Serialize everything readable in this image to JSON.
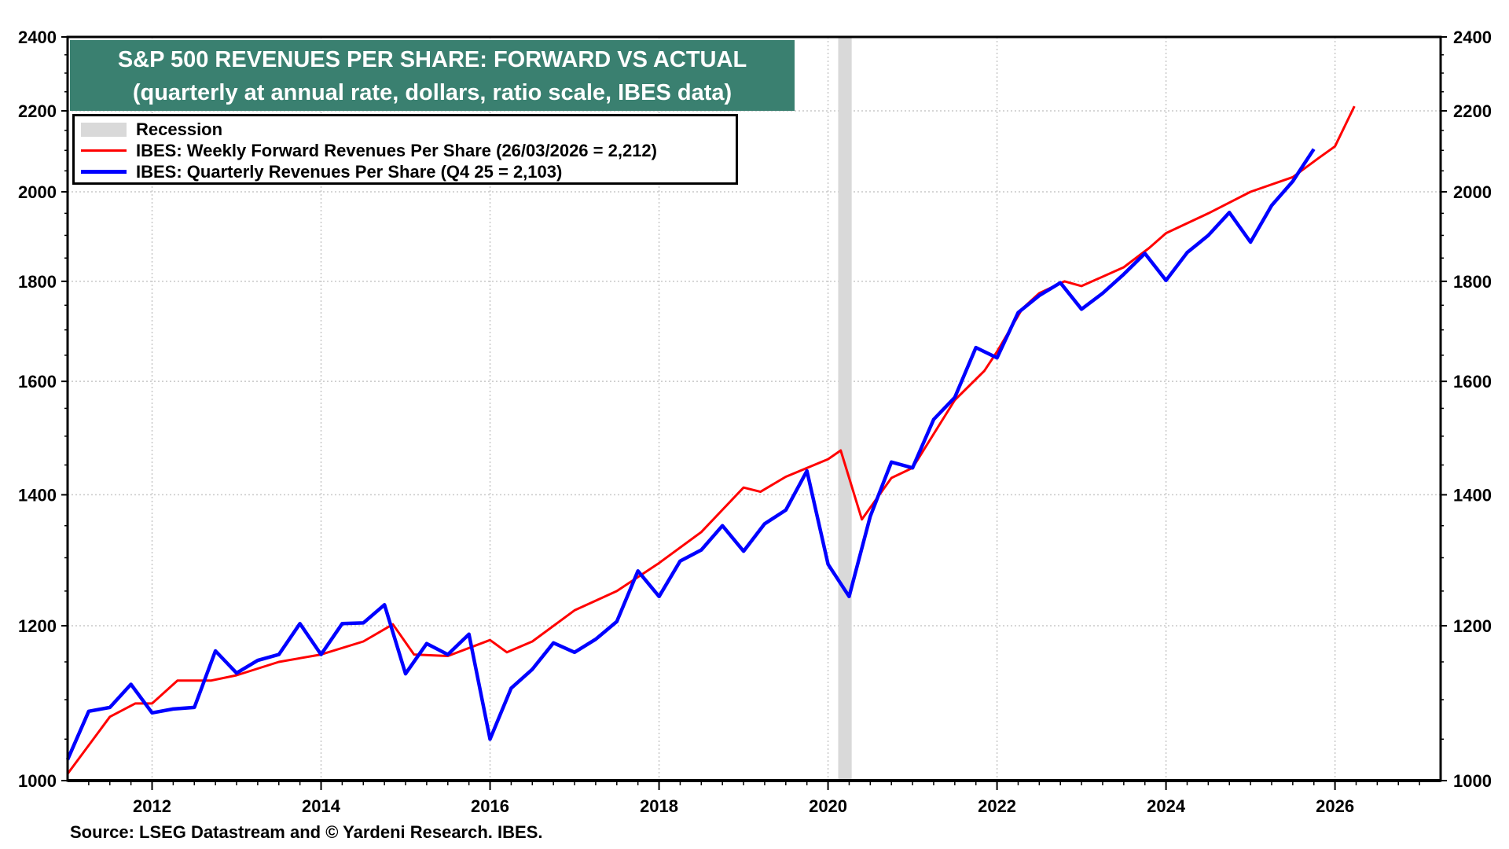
{
  "chart_data": {
    "type": "line",
    "title": "S&P 500 REVENUES PER SHARE: FORWARD VS ACTUAL",
    "subtitle": "(quarterly at annual rate, dollars, ratio scale, IBES data)",
    "y_scale": "log",
    "ylim": [
      1000,
      2400
    ],
    "xlim": [
      2011.0,
      2027.25
    ],
    "y_ticks": [
      1000,
      1200,
      1400,
      1600,
      1800,
      2000,
      2200,
      2400
    ],
    "x_ticks": [
      2012,
      2014,
      2016,
      2018,
      2020,
      2022,
      2024,
      2026
    ],
    "grid": true,
    "legend_position": "top-left",
    "recession": {
      "label": "Recession",
      "start": 2020.12,
      "end": 2020.28,
      "color": "#d9d9d9"
    },
    "series": [
      {
        "name": "IBES: Weekly Forward Revenues Per Share (26/03/2026 = 2,212)",
        "color": "#ff0000",
        "x": [
          2011.0,
          2011.5,
          2011.8,
          2012.0,
          2012.3,
          2012.7,
          2013.0,
          2013.5,
          2014.0,
          2014.5,
          2014.85,
          2015.1,
          2015.5,
          2016.0,
          2016.2,
          2016.5,
          2017.0,
          2017.5,
          2018.0,
          2018.5,
          2019.0,
          2019.2,
          2019.5,
          2020.0,
          2020.15,
          2020.4,
          2020.75,
          2021.0,
          2021.5,
          2021.85,
          2022.0,
          2022.3,
          2022.5,
          2022.8,
          2023.0,
          2023.5,
          2023.8,
          2024.0,
          2024.5,
          2025.0,
          2025.5,
          2025.8,
          2026.0,
          2026.23
        ],
        "y": [
          1008,
          1078,
          1095,
          1095,
          1125,
          1125,
          1132,
          1150,
          1160,
          1178,
          1202,
          1160,
          1158,
          1180,
          1163,
          1178,
          1222,
          1250,
          1292,
          1340,
          1412,
          1405,
          1430,
          1460,
          1475,
          1360,
          1428,
          1445,
          1565,
          1620,
          1657,
          1743,
          1775,
          1800,
          1790,
          1830,
          1872,
          1905,
          1950,
          2000,
          2035,
          2080,
          2110,
          2212
        ]
      },
      {
        "name": "IBES: Quarterly Revenues Per Share (Q4 25 = 2,103)",
        "color": "#0000ff",
        "x": [
          2011.0,
          2011.25,
          2011.5,
          2011.75,
          2012.0,
          2012.25,
          2012.5,
          2012.75,
          2013.0,
          2013.25,
          2013.5,
          2013.75,
          2014.0,
          2014.25,
          2014.5,
          2014.75,
          2015.0,
          2015.25,
          2015.5,
          2015.75,
          2016.0,
          2016.25,
          2016.5,
          2016.75,
          2017.0,
          2017.25,
          2017.5,
          2017.75,
          2018.0,
          2018.25,
          2018.5,
          2018.75,
          2019.0,
          2019.25,
          2019.5,
          2019.75,
          2020.0,
          2020.25,
          2020.5,
          2020.75,
          2021.0,
          2021.25,
          2021.5,
          2021.75,
          2022.0,
          2022.25,
          2022.5,
          2022.75,
          2023.0,
          2023.25,
          2023.5,
          2023.75,
          2024.0,
          2024.25,
          2024.5,
          2024.75,
          2025.0,
          2025.25,
          2025.5,
          2025.75
        ],
        "y": [
          1025,
          1085,
          1090,
          1120,
          1083,
          1088,
          1090,
          1165,
          1135,
          1152,
          1160,
          1203,
          1160,
          1203,
          1204,
          1230,
          1134,
          1175,
          1160,
          1188,
          1050,
          1115,
          1140,
          1176,
          1163,
          1181,
          1206,
          1280,
          1242,
          1295,
          1312,
          1350,
          1310,
          1353,
          1375,
          1440,
          1290,
          1242,
          1365,
          1455,
          1445,
          1530,
          1570,
          1665,
          1645,
          1735,
          1770,
          1797,
          1742,
          1775,
          1815,
          1860,
          1802,
          1862,
          1900,
          1952,
          1885,
          1968,
          2025,
          2103
        ]
      }
    ],
    "source": "Source: LSEG Datastream and © Yardeni Research. IBES."
  }
}
